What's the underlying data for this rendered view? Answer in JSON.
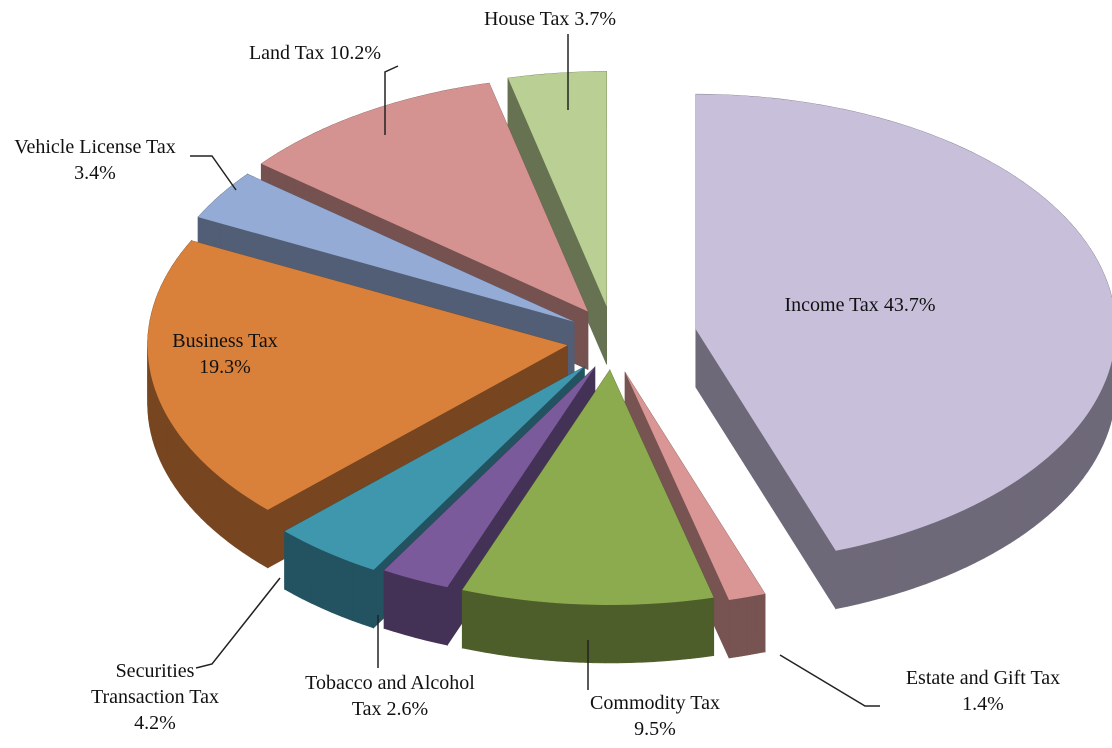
{
  "chart_data": {
    "type": "pie3d",
    "categories": [
      "Income Tax",
      "Estate and Gift Tax",
      "Commodity Tax",
      "Tobacco and Alcohol Tax",
      "Securities Transaction Tax",
      "Business Tax",
      "Vehicle License Tax",
      "Land Tax",
      "House Tax"
    ],
    "values": [
      43.7,
      1.4,
      9.5,
      2.6,
      4.2,
      19.3,
      3.4,
      10.2,
      3.7
    ],
    "value_labels": [
      "43.7%",
      "1.4%",
      "9.5%",
      "2.6%",
      "4.2%",
      "19.3%",
      "3.4%",
      "10.2%",
      "3.7%"
    ],
    "colors": [
      "#c8bfdb",
      "#d99694",
      "#8cab4e",
      "#7b5a9c",
      "#3f97ae",
      "#d9803b",
      "#94abd6",
      "#d49391",
      "#b9cf93"
    ]
  }
}
